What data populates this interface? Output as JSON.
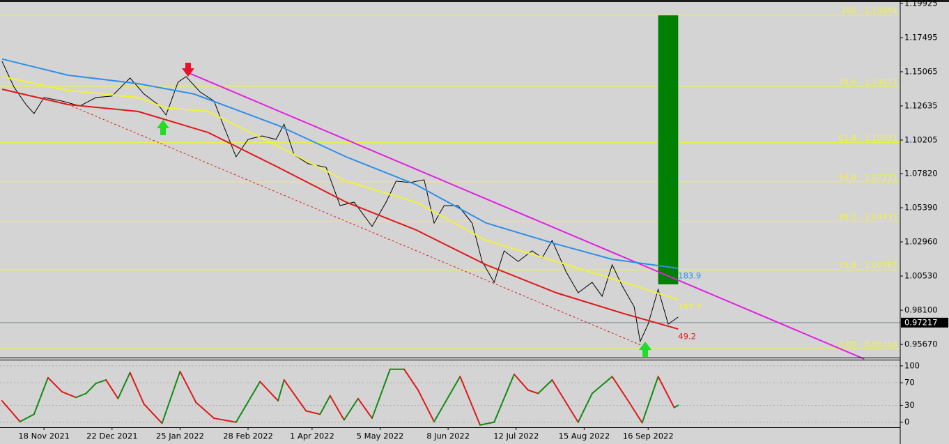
{
  "chart_data": {
    "type": "line",
    "xlim": [
      "2021-10-27",
      "2023-01-20"
    ],
    "xticks": [
      {
        "value": "2021-11-18",
        "label": "18 Nov 2021"
      },
      {
        "value": "2021-12-22",
        "label": "22 Dec 2021"
      },
      {
        "value": "2022-01-25",
        "label": "25 Jan 2022"
      },
      {
        "value": "2022-02-28",
        "label": "28 Feb 2022"
      },
      {
        "value": "2022-04-01",
        "label": "1 Apr 2022"
      },
      {
        "value": "2022-05-05",
        "label": "5 May 2022"
      },
      {
        "value": "2022-06-08",
        "label": "8 Jun 2022"
      },
      {
        "value": "2022-07-12",
        "label": "12 Jul 2022"
      },
      {
        "value": "2022-08-15",
        "label": "15 Aug 2022"
      },
      {
        "value": "2022-09-16",
        "label": "16 Sep 2022"
      }
    ],
    "ylim": [
      0.9473,
      1.2017
    ],
    "yticks": [
      1.19925,
      1.17495,
      1.15065,
      1.12635,
      1.10205,
      {
        "value": 1.0782,
        "label": "1.07820"
      },
      {
        "value": 1.0539,
        "label": "1.05390"
      },
      {
        "value": 1.0296,
        "label": "1.02960"
      },
      {
        "value": 1.0053,
        "label": "1.00530"
      },
      {
        "value": 0.981,
        "label": "0.98100"
      },
      {
        "value": 0.9567,
        "label": "0.95670"
      }
    ],
    "series": [
      {
        "color": "#000000",
        "x": [
          "2021-10-28",
          "2021-11-03",
          "2021-11-09",
          "2021-11-13",
          "2021-11-18",
          "2021-11-27",
          "2021-12-06",
          "2021-12-14",
          "2021-12-22",
          "2021-12-31",
          "2022-01-07",
          "2022-01-14",
          "2022-01-18",
          "2022-01-24",
          "2022-01-28",
          "2022-02-04",
          "2022-02-11",
          "2022-02-15",
          "2022-02-22",
          "2022-02-28",
          "2022-03-07",
          "2022-03-14",
          "2022-03-18",
          "2022-03-23",
          "2022-03-30",
          "2022-04-08",
          "2022-04-15",
          "2022-04-22",
          "2022-05-01",
          "2022-05-08",
          "2022-05-13",
          "2022-05-20",
          "2022-05-27",
          "2022-06-01",
          "2022-06-06",
          "2022-06-13",
          "2022-06-20",
          "2022-06-25",
          "2022-07-01",
          "2022-07-06",
          "2022-07-13",
          "2022-07-20",
          "2022-07-25",
          "2022-07-30",
          "2022-08-06",
          "2022-08-12",
          "2022-08-19",
          "2022-08-24",
          "2022-08-29",
          "2022-09-03",
          "2022-09-09",
          "2022-09-12",
          "2022-09-16",
          "2022-09-21",
          "2022-09-26",
          "2022-10-01"
        ],
        "values": [
          1.1581,
          1.1397,
          1.1273,
          1.1209,
          1.1323,
          1.1298,
          1.1263,
          1.1323,
          1.1333,
          1.1462,
          1.1348,
          1.1273,
          1.1199,
          1.1432,
          1.1472,
          1.1363,
          1.1298,
          1.1149,
          1.0901,
          1.1025,
          1.105,
          1.1025,
          1.1134,
          1.0916,
          1.0852,
          1.0827,
          1.0554,
          1.0579,
          1.0406,
          1.0579,
          1.0728,
          1.0718,
          1.0738,
          1.043,
          1.0554,
          1.0554,
          1.043,
          1.0157,
          1.0008,
          1.0232,
          1.0157,
          1.0232,
          1.0182,
          1.0306,
          1.0083,
          0.9934,
          1.0008,
          0.9909,
          1.0133,
          0.9984,
          0.9835,
          0.9587,
          0.9711,
          0.9959,
          0.9711,
          0.9761
        ]
      },
      {
        "color": "#2f8fe8",
        "end_label": 183.9,
        "x": [
          "2021-10-28",
          "2021-11-30",
          "2022-01-04",
          "2022-02-01",
          "2022-03-15",
          "2022-04-18",
          "2022-05-23",
          "2022-06-27",
          "2022-08-01",
          "2022-08-29",
          "2022-10-01"
        ],
        "values": [
          1.1597,
          1.1482,
          1.1422,
          1.1348,
          1.1125,
          1.0901,
          1.0703,
          1.043,
          1.0281,
          1.0172,
          1.0108
        ]
      },
      {
        "color": "#f2f23a",
        "end_label": 167.3,
        "x": [
          "2021-10-28",
          "2021-11-30",
          "2022-01-04",
          "2022-01-18",
          "2022-02-08",
          "2022-03-15",
          "2022-04-18",
          "2022-05-23",
          "2022-06-27",
          "2022-08-01",
          "2022-09-04",
          "2022-10-01"
        ],
        "values": [
          1.1472,
          1.1373,
          1.1323,
          1.1249,
          1.1224,
          1.0976,
          1.0728,
          1.0579,
          1.0306,
          1.0157,
          1.0008,
          0.9884
        ]
      },
      {
        "color": "#e01818",
        "end_label": 49.2,
        "x": [
          "2021-10-28",
          "2021-11-30",
          "2022-01-04",
          "2022-02-08",
          "2022-03-15",
          "2022-04-18",
          "2022-05-23",
          "2022-06-27",
          "2022-08-01",
          "2022-09-04",
          "2022-10-01"
        ],
        "values": [
          1.1382,
          1.1273,
          1.1224,
          1.1075,
          1.0827,
          1.0579,
          1.0381,
          1.0133,
          0.9934,
          0.9785,
          0.9676
        ]
      }
    ],
    "levels": [
      {
        "value": 1.19094,
        "label": "100 - 1.19094"
      },
      {
        "value": 1.14017,
        "label": "78.6 - 1.14017"
      },
      {
        "value": 1.10031,
        "label": "61.8 - 1.10031"
      },
      {
        "value": 1.07231,
        "label": "50.0 - 1.07231"
      },
      {
        "value": 1.04431,
        "label": "38.2 - 1.04431"
      },
      {
        "value": 1.00967,
        "label": "23.6 - 1.00967"
      },
      {
        "value": 0.95368,
        "label": "0.00 - 0.95368"
      }
    ],
    "level_color": "#f0f04a",
    "trend_lines": [
      {
        "color": "#e020e0",
        "dashed": false,
        "x": [
          "2022-01-28",
          "2023-01-02"
        ],
        "values": [
          1.1506,
          0.9463
        ]
      },
      {
        "color": "#e01818",
        "dashed": true,
        "x": [
          "2021-11-30",
          "2022-09-14"
        ],
        "values": [
          1.1273,
          0.9552
        ]
      }
    ],
    "target_box": {
      "color": "#008000",
      "x": [
        "2022-09-21",
        "2022-10-01"
      ],
      "values": [
        1.1908,
        0.9994
      ]
    },
    "current_price": {
      "value": 0.97217,
      "color": "#7a8a9a"
    },
    "oscillator": {
      "ylim": [
        -9,
        111
      ],
      "yticks": [
        100,
        70,
        30,
        0
      ],
      "rising_color": "#128a12",
      "falling_color": "#e01818",
      "x": [
        "2021-10-28",
        "2021-11-06",
        "2021-11-13",
        "2021-11-20",
        "2021-11-27",
        "2021-12-04",
        "2021-12-09",
        "2021-12-14",
        "2021-12-19",
        "2021-12-25",
        "2021-12-31",
        "2022-01-07",
        "2022-01-16",
        "2022-01-25",
        "2022-02-02",
        "2022-02-11",
        "2022-02-22",
        "2022-03-06",
        "2022-03-15",
        "2022-03-18",
        "2022-03-29",
        "2022-04-05",
        "2022-04-10",
        "2022-04-17",
        "2022-04-24",
        "2022-05-01",
        "2022-05-10",
        "2022-05-17",
        "2022-05-24",
        "2022-06-01",
        "2022-06-14",
        "2022-06-24",
        "2022-07-01",
        "2022-07-11",
        "2022-07-18",
        "2022-07-23",
        "2022-07-30",
        "2022-08-12",
        "2022-08-19",
        "2022-08-29",
        "2022-09-06",
        "2022-09-13",
        "2022-09-21",
        "2022-09-29",
        "2022-10-01"
      ],
      "values": [
        38,
        1,
        14,
        79,
        54,
        44,
        51,
        69,
        75,
        42,
        88,
        32,
        -2,
        90,
        35,
        7,
        0,
        72,
        38,
        75,
        20,
        14,
        47,
        4,
        42,
        7,
        94,
        94,
        57,
        1,
        81,
        -5,
        0,
        85,
        57,
        51,
        75,
        0,
        51,
        81,
        38,
        -1,
        81,
        26,
        30
      ]
    }
  }
}
